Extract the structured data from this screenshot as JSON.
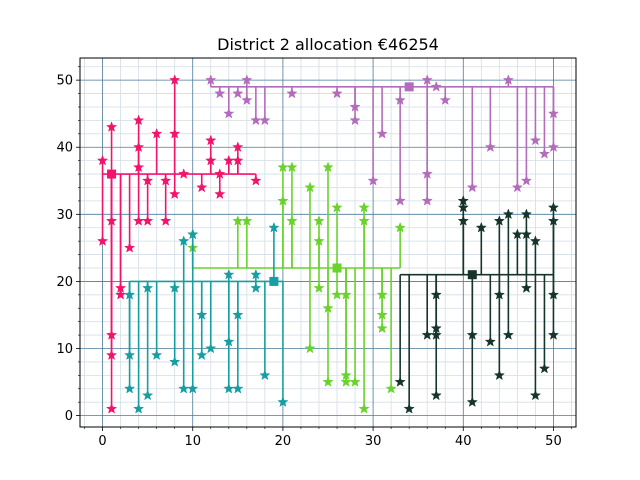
{
  "chart_data": {
    "type": "scatter",
    "title": "District 2 allocation €46254",
    "xlabel": "",
    "ylabel": "",
    "xlim": [
      -2.5,
      52.5
    ],
    "ylim": [
      -1.7,
      53.3
    ],
    "x_ticks": [
      "0",
      "10",
      "20",
      "30",
      "40",
      "50"
    ],
    "y_ticks": [
      "0",
      "10",
      "20",
      "30",
      "40",
      "50"
    ],
    "grid": "major and minor",
    "legend": "none",
    "colors": {
      "major_grid": "#4a7a99",
      "minor_grid": "#d3dde6",
      "axes": "#000000"
    },
    "series": [
      {
        "color": "#f2136b",
        "hub": [
          1,
          36
        ],
        "points": [
          [
            0,
            38
          ],
          [
            0,
            26
          ],
          [
            1,
            43
          ],
          [
            1,
            29
          ],
          [
            1,
            12
          ],
          [
            1,
            9
          ],
          [
            1,
            1
          ],
          [
            2,
            19
          ],
          [
            2,
            18
          ],
          [
            3,
            25
          ],
          [
            4,
            44
          ],
          [
            4,
            40
          ],
          [
            4,
            37
          ],
          [
            4,
            29
          ],
          [
            5,
            35
          ],
          [
            5,
            29
          ],
          [
            6,
            42
          ],
          [
            7,
            29
          ],
          [
            7,
            35
          ],
          [
            8,
            50
          ],
          [
            8,
            42
          ],
          [
            8,
            33
          ],
          [
            9,
            36
          ],
          [
            11,
            34
          ],
          [
            12,
            41
          ],
          [
            12,
            38
          ],
          [
            13,
            33
          ],
          [
            13,
            36
          ],
          [
            14,
            38
          ],
          [
            15,
            40
          ],
          [
            15,
            38
          ],
          [
            17,
            35
          ]
        ]
      },
      {
        "color": "#b36cbc",
        "hub": [
          34,
          49
        ],
        "points": [
          [
            12,
            50
          ],
          [
            13,
            48
          ],
          [
            14,
            45
          ],
          [
            15,
            48
          ],
          [
            16,
            50
          ],
          [
            16,
            47
          ],
          [
            17,
            44
          ],
          [
            18,
            44
          ],
          [
            21,
            48
          ],
          [
            26,
            48
          ],
          [
            28,
            46
          ],
          [
            28,
            44
          ],
          [
            30,
            35
          ],
          [
            31,
            42
          ],
          [
            33,
            47
          ],
          [
            33,
            32
          ],
          [
            36,
            50
          ],
          [
            36,
            36
          ],
          [
            36,
            32
          ],
          [
            37,
            49
          ],
          [
            38,
            47
          ],
          [
            41,
            34
          ],
          [
            43,
            40
          ],
          [
            45,
            50
          ],
          [
            46,
            34
          ],
          [
            47,
            35
          ],
          [
            48,
            41
          ],
          [
            49,
            39
          ],
          [
            50,
            45
          ],
          [
            50,
            40
          ]
        ]
      },
      {
        "color": "#6ad22c",
        "hub": [
          26,
          22
        ],
        "points": [
          [
            10,
            27
          ],
          [
            10,
            25
          ],
          [
            15,
            29
          ],
          [
            16,
            29
          ],
          [
            20,
            37
          ],
          [
            20,
            32
          ],
          [
            21,
            37
          ],
          [
            21,
            29
          ],
          [
            23,
            34
          ],
          [
            23,
            10
          ],
          [
            24,
            29
          ],
          [
            24,
            26
          ],
          [
            24,
            19
          ],
          [
            25,
            37
          ],
          [
            25,
            16
          ],
          [
            25,
            5
          ],
          [
            26,
            31
          ],
          [
            26,
            18
          ],
          [
            27,
            18
          ],
          [
            27,
            6
          ],
          [
            27,
            5
          ],
          [
            28,
            5
          ],
          [
            29,
            31
          ],
          [
            29,
            29
          ],
          [
            29,
            1
          ],
          [
            31,
            15
          ],
          [
            31,
            13
          ],
          [
            32,
            4
          ],
          [
            33,
            28
          ],
          [
            31,
            18
          ]
        ]
      },
      {
        "color": "#169ea2",
        "hub": [
          19,
          20
        ],
        "points": [
          [
            3,
            18
          ],
          [
            3,
            9
          ],
          [
            3,
            4
          ],
          [
            4,
            1
          ],
          [
            5,
            19
          ],
          [
            5,
            3
          ],
          [
            6,
            9
          ],
          [
            8,
            19
          ],
          [
            8,
            8
          ],
          [
            9,
            26
          ],
          [
            9,
            4
          ],
          [
            10,
            27
          ],
          [
            10,
            4
          ],
          [
            11,
            15
          ],
          [
            11,
            9
          ],
          [
            12,
            10
          ],
          [
            14,
            21
          ],
          [
            14,
            11
          ],
          [
            14,
            4
          ],
          [
            15,
            15
          ],
          [
            15,
            4
          ],
          [
            17,
            21
          ],
          [
            17,
            19
          ],
          [
            18,
            6
          ],
          [
            19,
            28
          ],
          [
            20,
            2
          ]
        ]
      },
      {
        "color": "#16352a",
        "hub": [
          41,
          21
        ],
        "points": [
          [
            33,
            5
          ],
          [
            34,
            1
          ],
          [
            36,
            12
          ],
          [
            37,
            18
          ],
          [
            37,
            13
          ],
          [
            37,
            12
          ],
          [
            37,
            3
          ],
          [
            40,
            32
          ],
          [
            40,
            31
          ],
          [
            40,
            29
          ],
          [
            41,
            2
          ],
          [
            41,
            12
          ],
          [
            42,
            28
          ],
          [
            43,
            11
          ],
          [
            44,
            18
          ],
          [
            44,
            6
          ],
          [
            44,
            29
          ],
          [
            45,
            30
          ],
          [
            45,
            12
          ],
          [
            46,
            27
          ],
          [
            47,
            30
          ],
          [
            47,
            27
          ],
          [
            47,
            19
          ],
          [
            48,
            26
          ],
          [
            48,
            3
          ],
          [
            49,
            7
          ],
          [
            50,
            31
          ],
          [
            50,
            29
          ],
          [
            50,
            18
          ],
          [
            50,
            12
          ]
        ]
      }
    ]
  }
}
